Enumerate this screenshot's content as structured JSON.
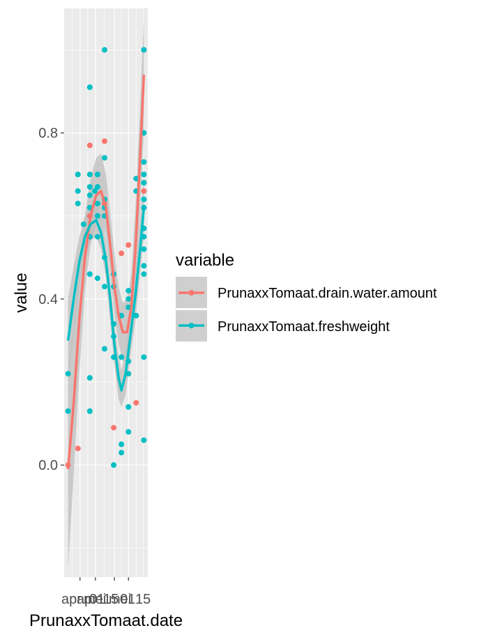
{
  "chart_data": {
    "type": "scatter",
    "xlabel": "PrunaxxTomaat.date",
    "ylabel": "value",
    "ylim": [
      -0.27,
      1.1
    ],
    "y_ticks": [
      0.0,
      0.4,
      0.8
    ],
    "y_tick_labels": [
      "0.0",
      "0.4",
      "0.8"
    ],
    "x_tick_labels": [
      "apr",
      "apr",
      "mei",
      "01",
      "15",
      "mei",
      "01",
      "15"
    ],
    "smooth": true,
    "grid": true,
    "legend_position": "right",
    "legend": {
      "title": "variable",
      "entries": [
        "PrunaxxTomaat.drain.water.amount",
        "PrunaxxTomaat.freshweight"
      ]
    },
    "colors": {
      "panel": "#ebebeb",
      "grid": "#ffffff",
      "ribbon": "#bebebe",
      "drain": "#f8766d",
      "fresh": "#00bfc4"
    },
    "series": [
      {
        "name": "PrunaxxTomaat.drain.water.amount",
        "color": "#f8766d",
        "points": [
          [
            0.0,
            0.0
          ],
          [
            0.7,
            0.04
          ],
          [
            1.55,
            0.77
          ],
          [
            1.55,
            0.6
          ],
          [
            2.6,
            0.78
          ],
          [
            2.6,
            0.63
          ],
          [
            3.25,
            0.09
          ],
          [
            3.8,
            0.51
          ],
          [
            4.3,
            0.53
          ],
          [
            4.85,
            0.15
          ],
          [
            5.4,
            1.0
          ],
          [
            5.4,
            0.68
          ],
          [
            5.4,
            0.66
          ]
        ],
        "smooth": [
          [
            0.0,
            -0.01
          ],
          [
            0.4,
            0.15
          ],
          [
            0.8,
            0.35
          ],
          [
            1.2,
            0.5
          ],
          [
            1.6,
            0.6
          ],
          [
            2.0,
            0.65
          ],
          [
            2.35,
            0.66
          ],
          [
            2.7,
            0.62
          ],
          [
            3.0,
            0.53
          ],
          [
            3.3,
            0.43
          ],
          [
            3.6,
            0.36
          ],
          [
            3.9,
            0.32
          ],
          [
            4.2,
            0.32
          ],
          [
            4.5,
            0.38
          ],
          [
            4.8,
            0.52
          ],
          [
            5.1,
            0.72
          ],
          [
            5.4,
            0.94
          ]
        ],
        "band": [
          [
            0.0,
            -0.25,
            0.22
          ],
          [
            0.4,
            -0.02,
            0.34
          ],
          [
            0.8,
            0.22,
            0.47
          ],
          [
            1.2,
            0.42,
            0.6
          ],
          [
            1.6,
            0.53,
            0.69
          ],
          [
            2.0,
            0.58,
            0.74
          ],
          [
            2.35,
            0.59,
            0.75
          ],
          [
            2.7,
            0.55,
            0.7
          ],
          [
            3.0,
            0.46,
            0.61
          ],
          [
            3.3,
            0.36,
            0.51
          ],
          [
            3.6,
            0.29,
            0.43
          ],
          [
            3.9,
            0.25,
            0.39
          ],
          [
            4.2,
            0.25,
            0.4
          ],
          [
            4.5,
            0.3,
            0.46
          ],
          [
            4.8,
            0.42,
            0.62
          ],
          [
            5.1,
            0.59,
            0.84
          ],
          [
            5.4,
            0.8,
            1.08
          ]
        ]
      },
      {
        "name": "PrunaxxTomaat.freshweight",
        "color": "#00bfc4",
        "points": [
          [
            0.0,
            0.22
          ],
          [
            0.0,
            0.13
          ],
          [
            0.7,
            0.7
          ],
          [
            0.7,
            0.66
          ],
          [
            0.7,
            0.63
          ],
          [
            1.1,
            0.58
          ],
          [
            1.55,
            0.91
          ],
          [
            1.55,
            0.7
          ],
          [
            1.55,
            0.67
          ],
          [
            1.55,
            0.65
          ],
          [
            1.55,
            0.62
          ],
          [
            1.55,
            0.55
          ],
          [
            1.55,
            0.46
          ],
          [
            1.55,
            0.21
          ],
          [
            1.55,
            0.13
          ],
          [
            1.9,
            0.66
          ],
          [
            2.1,
            0.7
          ],
          [
            2.1,
            0.67
          ],
          [
            2.1,
            0.63
          ],
          [
            2.1,
            0.6
          ],
          [
            2.1,
            0.55
          ],
          [
            2.1,
            0.45
          ],
          [
            2.6,
            1.0
          ],
          [
            2.6,
            0.74
          ],
          [
            2.6,
            0.64
          ],
          [
            2.6,
            0.62
          ],
          [
            2.6,
            0.6
          ],
          [
            2.6,
            0.5
          ],
          [
            2.6,
            0.43
          ],
          [
            2.6,
            0.28
          ],
          [
            3.25,
            0.46
          ],
          [
            3.25,
            0.43
          ],
          [
            3.25,
            0.34
          ],
          [
            3.25,
            0.31
          ],
          [
            3.25,
            0.26
          ],
          [
            3.25,
            0.0
          ],
          [
            3.8,
            0.36
          ],
          [
            3.8,
            0.26
          ],
          [
            3.8,
            0.05
          ],
          [
            3.8,
            0.03
          ],
          [
            4.3,
            0.42
          ],
          [
            4.3,
            0.4
          ],
          [
            4.3,
            0.38
          ],
          [
            4.3,
            0.25
          ],
          [
            4.3,
            0.22
          ],
          [
            4.3,
            0.14
          ],
          [
            4.3,
            0.08
          ],
          [
            4.85,
            0.69
          ],
          [
            4.85,
            0.66
          ],
          [
            4.85,
            0.36
          ],
          [
            5.4,
            1.0
          ],
          [
            5.4,
            0.8
          ],
          [
            5.4,
            0.73
          ],
          [
            5.4,
            0.7
          ],
          [
            5.4,
            0.68
          ],
          [
            5.4,
            0.64
          ],
          [
            5.4,
            0.62
          ],
          [
            5.4,
            0.57
          ],
          [
            5.4,
            0.55
          ],
          [
            5.4,
            0.52
          ],
          [
            5.4,
            0.48
          ],
          [
            5.4,
            0.46
          ],
          [
            5.4,
            0.26
          ],
          [
            5.4,
            0.06
          ]
        ],
        "smooth": [
          [
            0.0,
            0.3
          ],
          [
            0.4,
            0.4
          ],
          [
            0.8,
            0.49
          ],
          [
            1.2,
            0.55
          ],
          [
            1.6,
            0.58
          ],
          [
            2.0,
            0.59
          ],
          [
            2.35,
            0.56
          ],
          [
            2.7,
            0.49
          ],
          [
            3.0,
            0.4
          ],
          [
            3.3,
            0.29
          ],
          [
            3.6,
            0.21
          ],
          [
            3.8,
            0.18
          ],
          [
            4.1,
            0.22
          ],
          [
            4.4,
            0.3
          ],
          [
            4.8,
            0.41
          ],
          [
            5.1,
            0.51
          ],
          [
            5.4,
            0.62
          ]
        ],
        "band": [
          [
            0.0,
            0.2,
            0.4
          ],
          [
            0.4,
            0.32,
            0.48
          ],
          [
            0.8,
            0.43,
            0.55
          ],
          [
            1.2,
            0.5,
            0.6
          ],
          [
            1.6,
            0.54,
            0.62
          ],
          [
            2.0,
            0.55,
            0.63
          ],
          [
            2.35,
            0.52,
            0.6
          ],
          [
            2.7,
            0.45,
            0.54
          ],
          [
            3.0,
            0.35,
            0.45
          ],
          [
            3.3,
            0.24,
            0.34
          ],
          [
            3.6,
            0.16,
            0.26
          ],
          [
            3.8,
            0.14,
            0.23
          ],
          [
            4.1,
            0.17,
            0.27
          ],
          [
            4.4,
            0.25,
            0.35
          ],
          [
            4.8,
            0.35,
            0.47
          ],
          [
            5.1,
            0.45,
            0.58
          ],
          [
            5.4,
            0.55,
            0.7
          ]
        ]
      }
    ]
  }
}
